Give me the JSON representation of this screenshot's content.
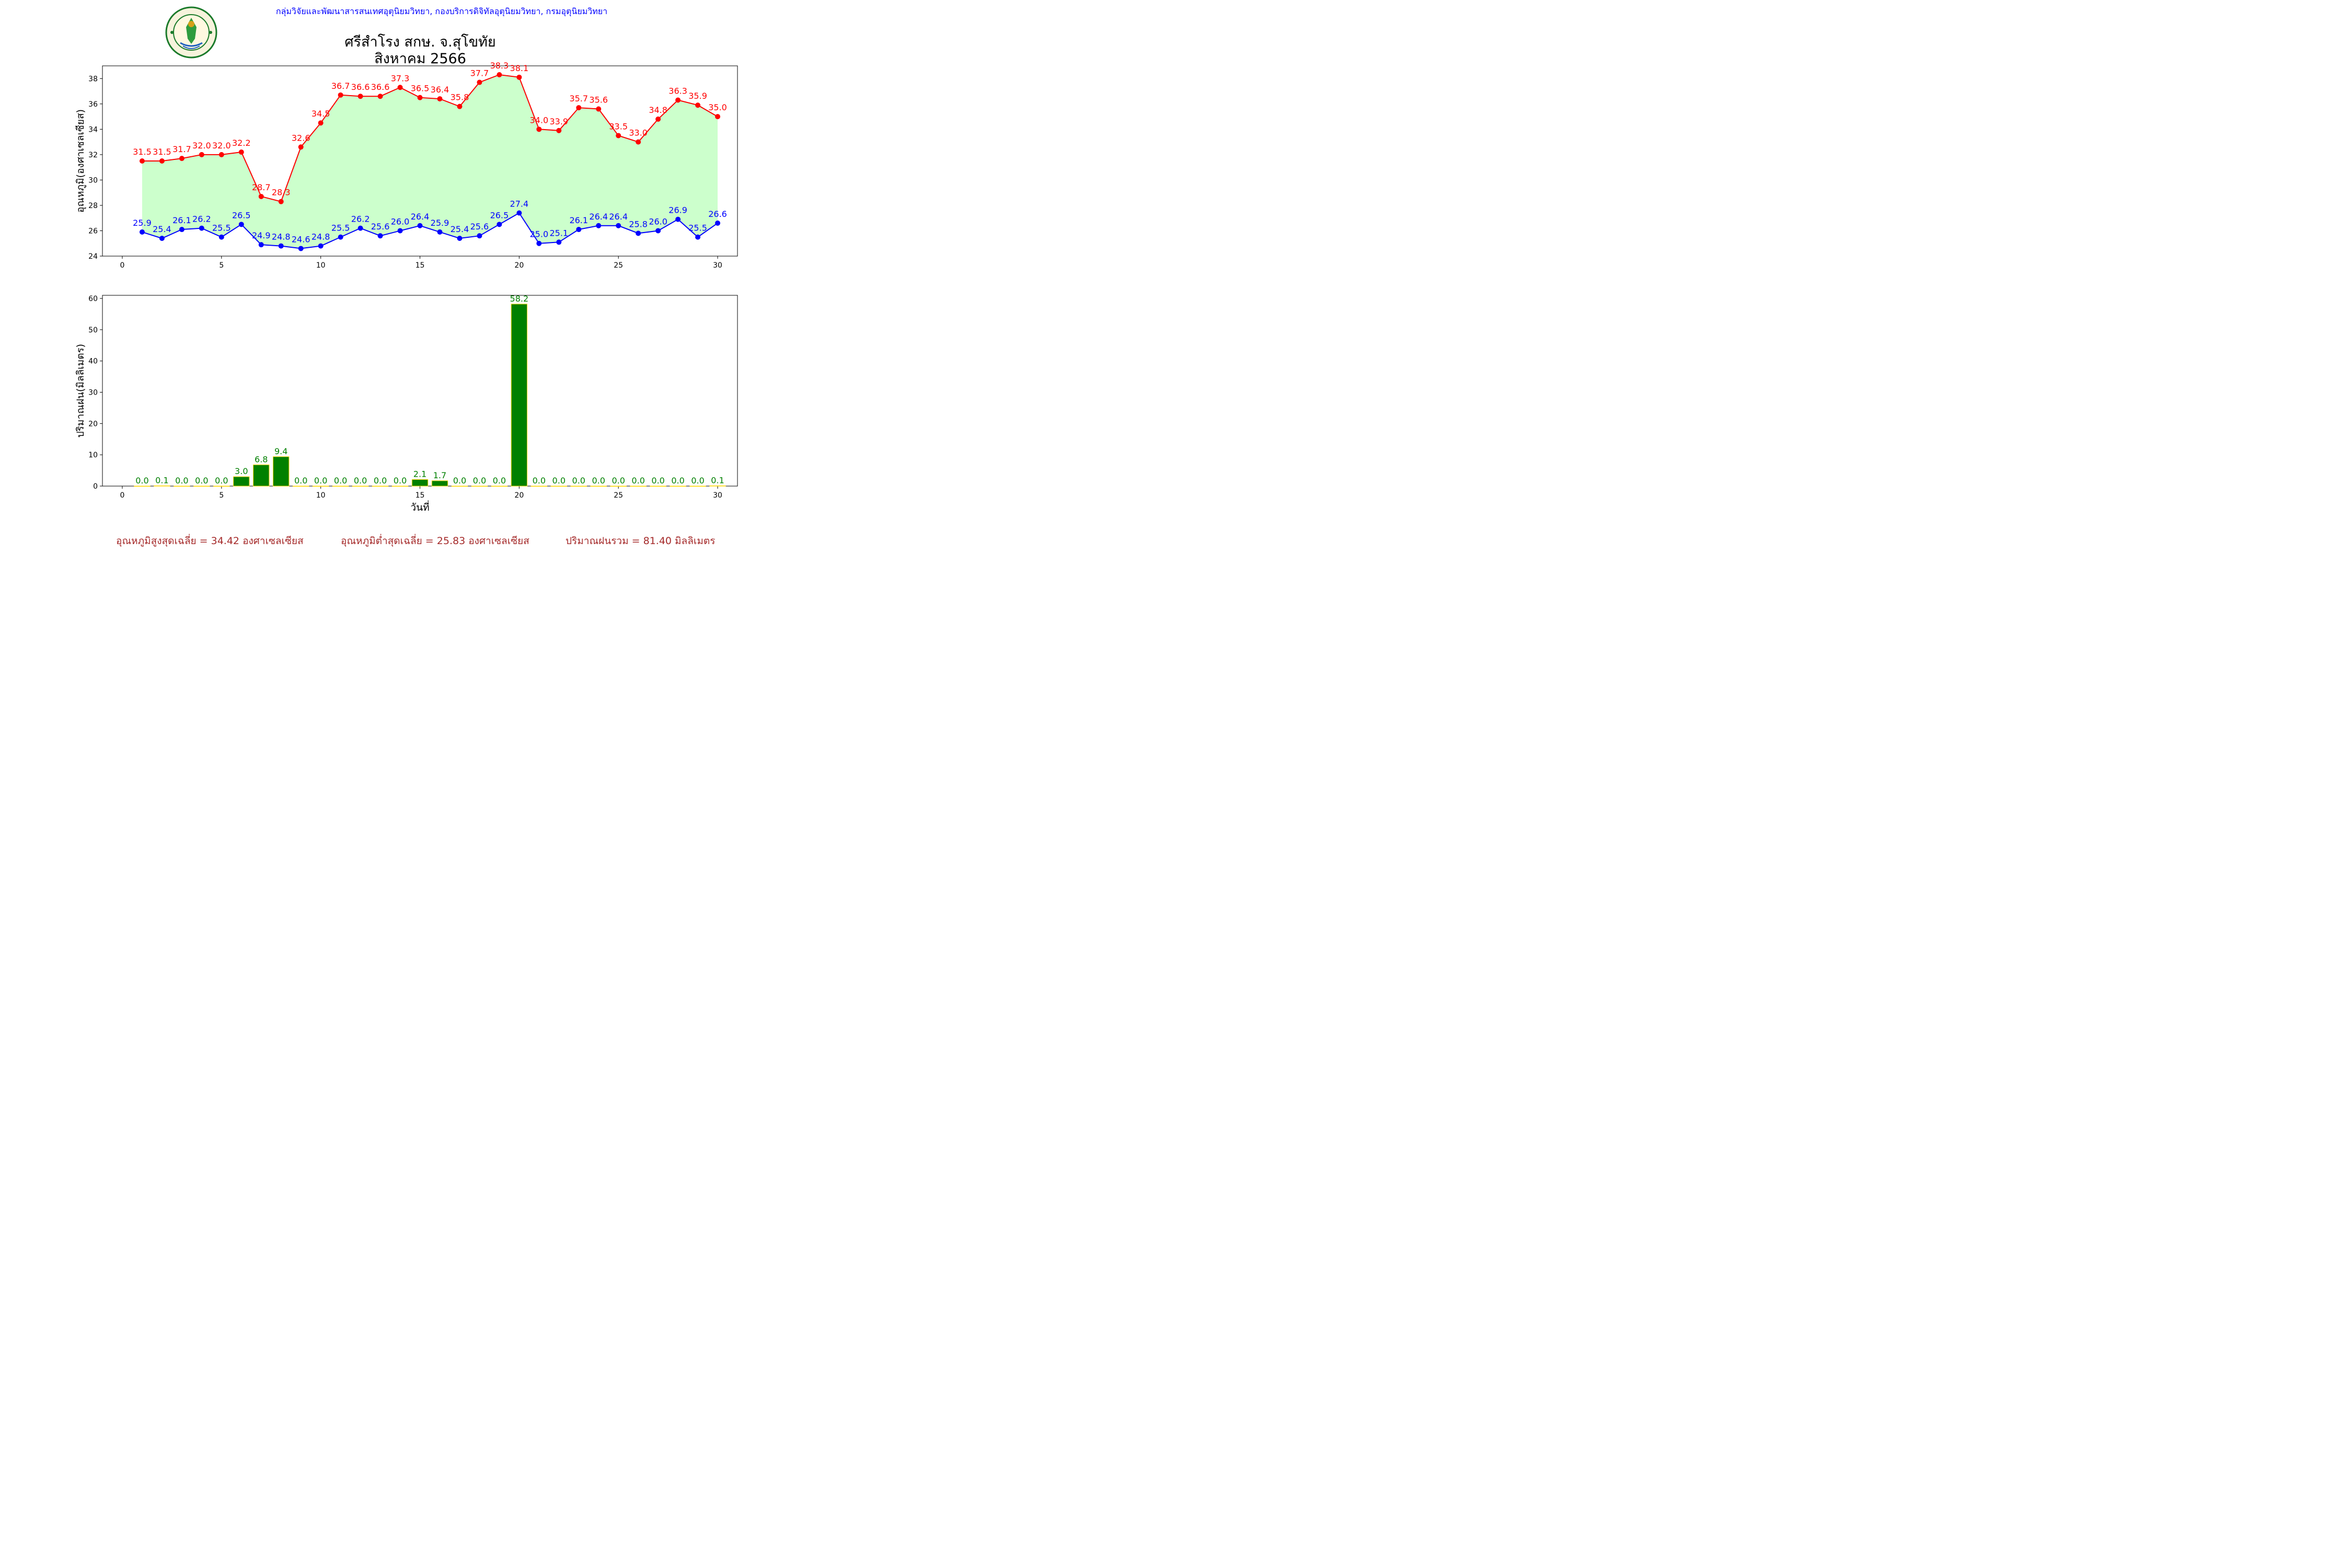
{
  "header": {
    "org_line": "กลุ่มวิจัยและพัฒนาสารสนเทศอุตุนิยมวิทยา, กองบริการดิจิทัลอุตุนิยมวิทยา, กรมอุตุนิยมวิทยา",
    "logo_text": "กรมอุตุนิยมวิทยา METEOROLOGICAL DEPARTMENT"
  },
  "title": {
    "line1": "ศรีสำโรง สกษ. จ.สุโขทัย",
    "line2": "สิงหาคม 2566"
  },
  "colors": {
    "max_line": "#ff0000",
    "min_line": "#0000ff",
    "fill_between": "#ccffcc",
    "rain_bar": "#008000",
    "rain_bar_edge": "#ffd700",
    "rain_label": "#008000",
    "footer_text": "#a52a2a",
    "header_text": "#0000ff"
  },
  "chart_data": [
    {
      "type": "line",
      "xlabel": "",
      "ylabel": "อุณหภูมิ(องศาเซลเซียส)",
      "xlim": [
        -1,
        31
      ],
      "ylim": [
        24,
        39
      ],
      "xticks": [
        0,
        5,
        10,
        15,
        20,
        25,
        30
      ],
      "yticks": [
        24,
        26,
        28,
        30,
        32,
        34,
        36,
        38
      ],
      "x": [
        1,
        2,
        3,
        4,
        5,
        6,
        7,
        8,
        9,
        10,
        11,
        12,
        13,
        14,
        15,
        16,
        17,
        18,
        19,
        20,
        21,
        22,
        23,
        24,
        25,
        26,
        27,
        28,
        29,
        30
      ],
      "series": [
        {
          "id": "max",
          "values": [
            31.5,
            31.5,
            31.7,
            32.0,
            32.0,
            32.2,
            28.7,
            28.3,
            32.6,
            34.5,
            36.7,
            36.6,
            36.6,
            37.3,
            36.5,
            36.4,
            35.8,
            37.7,
            38.3,
            38.1,
            34.0,
            33.9,
            35.7,
            35.6,
            33.5,
            33.0,
            34.8,
            36.3,
            35.9,
            35.0
          ]
        },
        {
          "id": "min",
          "values": [
            25.9,
            25.4,
            26.1,
            26.2,
            25.5,
            26.5,
            24.9,
            24.8,
            24.6,
            24.8,
            25.5,
            26.2,
            25.6,
            26.0,
            26.4,
            25.9,
            25.4,
            25.6,
            26.5,
            27.4,
            25.0,
            25.1,
            26.1,
            26.4,
            26.4,
            25.8,
            26.0,
            26.9,
            25.5,
            26.6
          ]
        }
      ],
      "fill_between": [
        "min",
        "max"
      ],
      "grid": false
    },
    {
      "type": "bar",
      "xlabel": "วันที่",
      "ylabel": "ปริมาณฝน(มิลลิเมตร)",
      "xlim": [
        -1,
        31
      ],
      "ylim": [
        0,
        61
      ],
      "xticks": [
        0,
        5,
        10,
        15,
        20,
        25,
        30
      ],
      "yticks": [
        0,
        10,
        20,
        30,
        40,
        50,
        60
      ],
      "categories": [
        1,
        2,
        3,
        4,
        5,
        6,
        7,
        8,
        9,
        10,
        11,
        12,
        13,
        14,
        15,
        16,
        17,
        18,
        19,
        20,
        21,
        22,
        23,
        24,
        25,
        26,
        27,
        28,
        29,
        30
      ],
      "values": [
        0.0,
        0.1,
        0.0,
        0.0,
        0.0,
        3.0,
        6.8,
        9.4,
        0.0,
        0.0,
        0.0,
        0.0,
        0.0,
        0.0,
        2.1,
        1.7,
        0.0,
        0.0,
        0.0,
        58.2,
        0.0,
        0.0,
        0.0,
        0.0,
        0.0,
        0.0,
        0.0,
        0.0,
        0.0,
        0.1
      ],
      "grid": false
    }
  ],
  "footer": {
    "avg_max": "อุณหภูมิสูงสุดเฉลี่ย = 34.42 องศาเซลเซียส",
    "avg_min": "อุณหภูมิต่ำสุดเฉลี่ย = 25.83 องศาเซลเซียส",
    "total_rain": "ปริมาณฝนรวม = 81.40 มิลลิเมตร"
  }
}
